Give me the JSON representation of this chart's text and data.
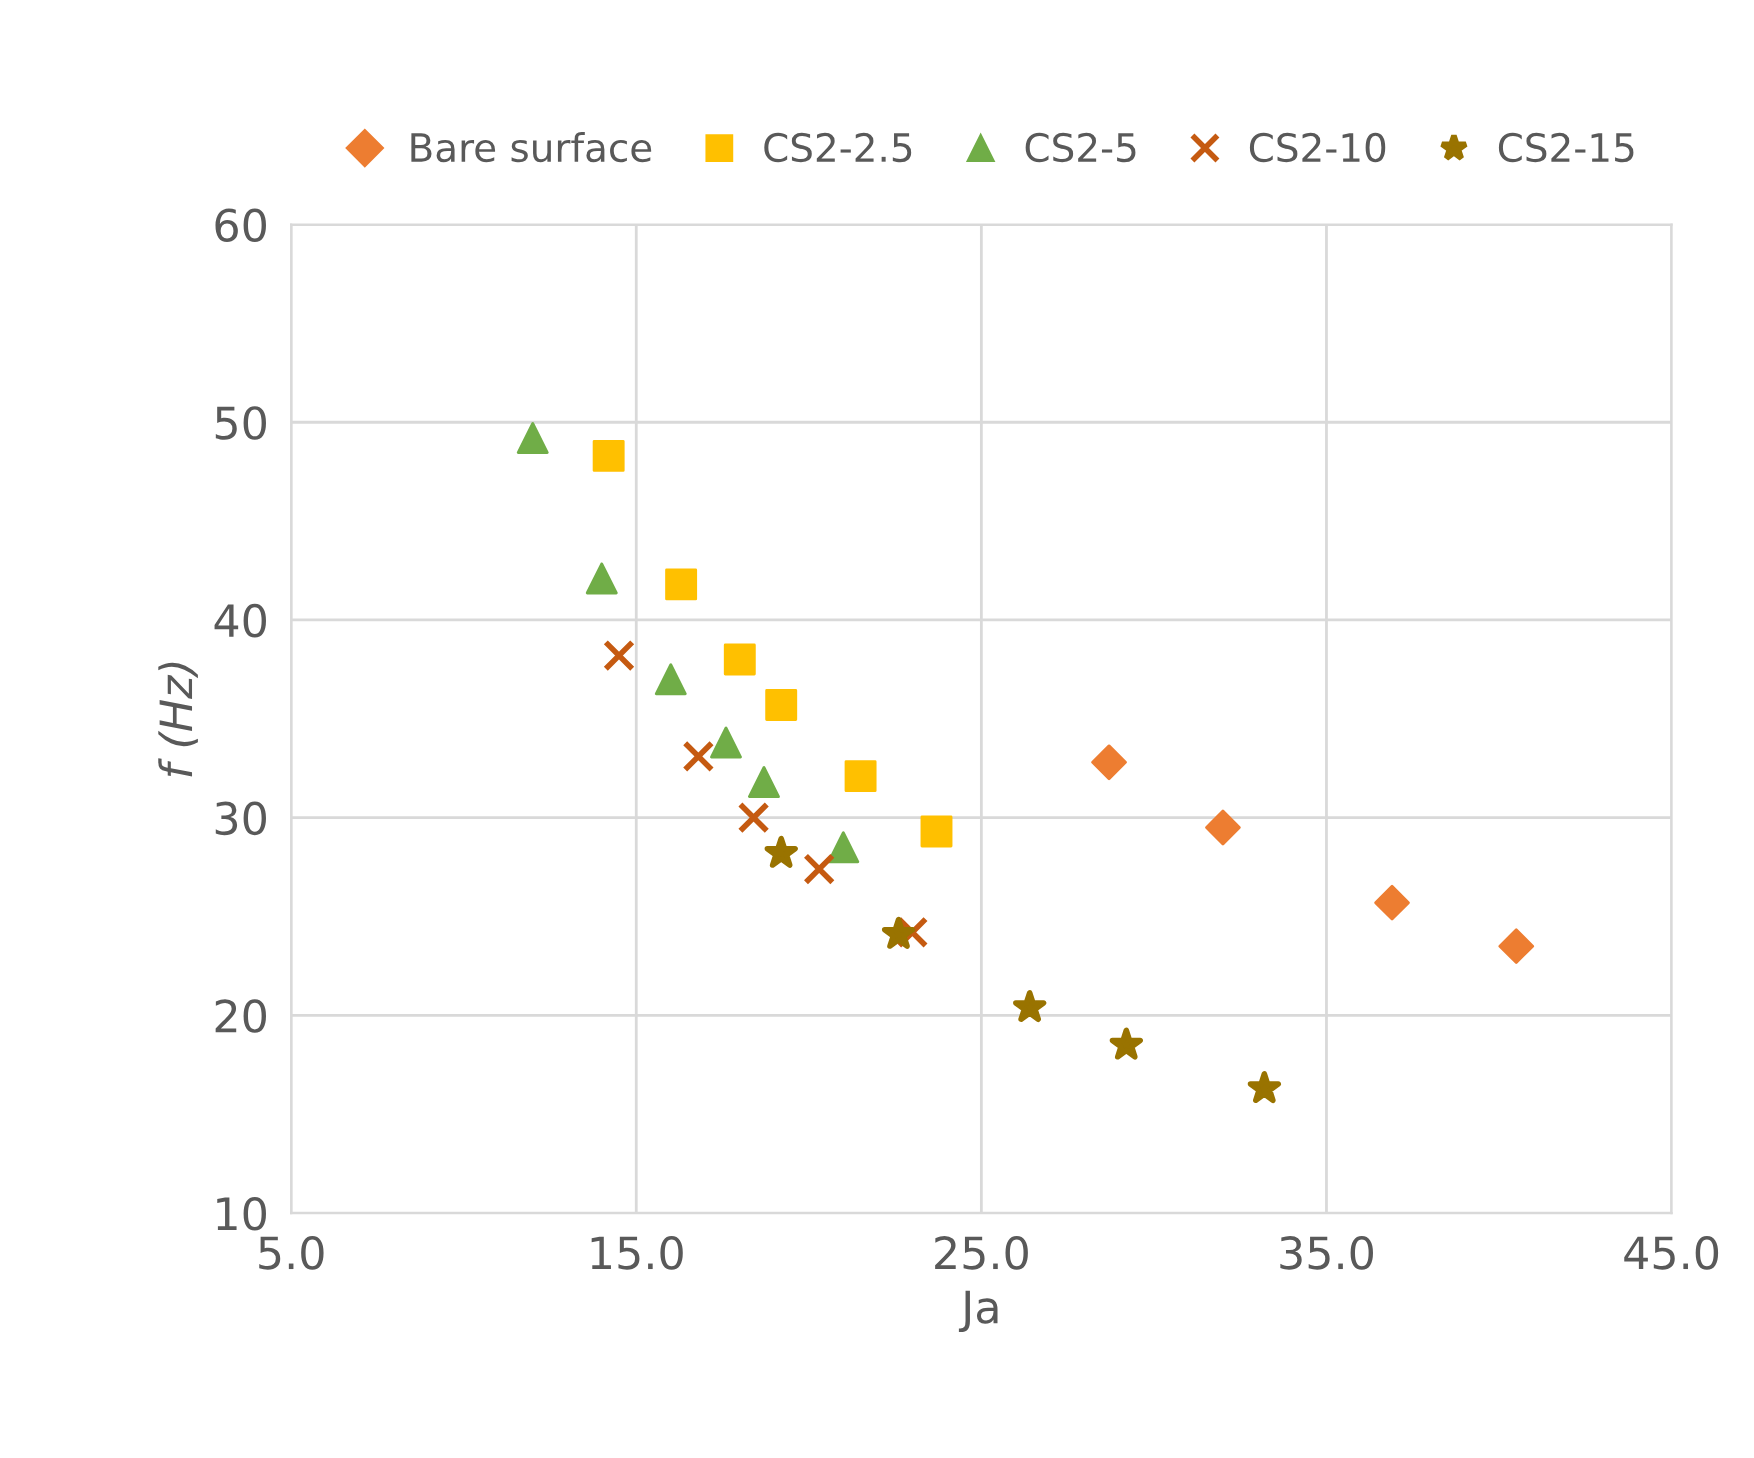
{
  "chart_data": {
    "type": "scatter",
    "xlabel": "Ja",
    "ylabel": "f (Hz)",
    "xlim": [
      5,
      45
    ],
    "xticks": [
      {
        "value": 5,
        "label": "5.0"
      },
      {
        "value": 15,
        "label": "15.0"
      },
      {
        "value": 25,
        "label": "25.0"
      },
      {
        "value": 35,
        "label": "35.0"
      },
      {
        "value": 45,
        "label": "45.0"
      }
    ],
    "ylim": [
      10,
      60
    ],
    "yticks": [
      10,
      20,
      30,
      40,
      50,
      60
    ],
    "grid": true,
    "legend": "top",
    "series": [
      {
        "name": "Bare surface",
        "color": "#ed7d31",
        "marker": "diamond",
        "x": [
          28.7,
          32.0,
          36.9,
          40.5
        ],
        "values": [
          32.8,
          29.5,
          25.7,
          23.5
        ]
      },
      {
        "name": "CS2-2.5",
        "color": "#ffc000",
        "marker": "square",
        "x": [
          14.2,
          16.3,
          18.0,
          19.2,
          21.5,
          23.7
        ],
        "values": [
          48.3,
          41.8,
          38.0,
          35.7,
          32.1,
          29.3
        ]
      },
      {
        "name": "CS2-5",
        "color": "#70ad47",
        "marker": "triangle",
        "x": [
          12.0,
          14.0,
          16.0,
          17.6,
          18.7,
          21.0
        ],
        "values": [
          49.2,
          42.1,
          37.0,
          33.8,
          31.8,
          28.5
        ]
      },
      {
        "name": "CS2-10",
        "color": "#c55a11",
        "marker": "cross",
        "x": [
          14.5,
          16.8,
          18.4,
          20.3,
          23.0
        ],
        "values": [
          38.2,
          33.1,
          30.0,
          27.4,
          24.2
        ]
      },
      {
        "name": "CS2-15",
        "color": "#997300",
        "marker": "star",
        "x": [
          19.2,
          22.6,
          26.4,
          29.2,
          33.2
        ],
        "values": [
          28.2,
          24.1,
          20.4,
          18.5,
          16.3
        ]
      }
    ]
  }
}
